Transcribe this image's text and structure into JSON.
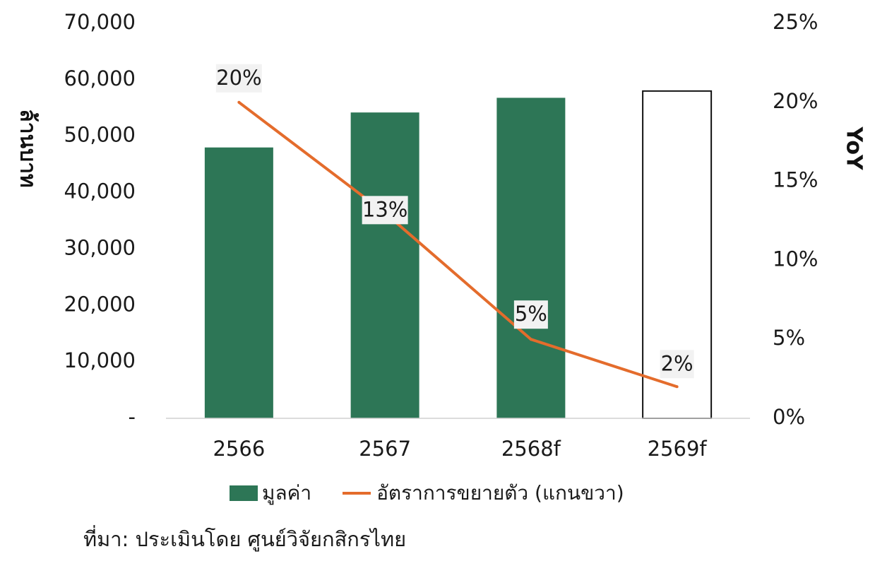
{
  "chart_data": {
    "type": "bar",
    "categories": [
      "2566",
      "2567",
      "2568f",
      "2569f"
    ],
    "series": [
      {
        "name": "มูลค่า",
        "type": "bar",
        "axis": "left",
        "values": [
          48000,
          54200,
          56800,
          58000
        ],
        "color": "#2d7656",
        "styles": [
          "filled",
          "filled",
          "filled",
          "outline"
        ]
      },
      {
        "name": "อัตราการขยายตัว (แกนขวา)",
        "type": "line",
        "axis": "right",
        "values": [
          20,
          13,
          5,
          2
        ],
        "data_labels": [
          "20%",
          "13%",
          "5%",
          "2%"
        ],
        "color": "#e46c2c"
      }
    ],
    "y_left": {
      "label": "ล้านบาท",
      "ylim": [
        0,
        70000
      ],
      "ticks": [
        0,
        10000,
        20000,
        30000,
        40000,
        50000,
        60000,
        70000
      ],
      "tick_labels": [
        "-",
        "10,000",
        "20,000",
        "30,000",
        "40,000",
        "50,000",
        "60,000",
        "70,000"
      ]
    },
    "y_right": {
      "label": "YoY",
      "ylim": [
        0,
        25
      ],
      "ticks": [
        0,
        5,
        10,
        15,
        20,
        25
      ],
      "tick_labels": [
        "0%",
        "5%",
        "10%",
        "15%",
        "20%",
        "25%"
      ]
    },
    "grid": false,
    "legend_position": "bottom",
    "label_background": "#f2f2f2"
  },
  "legend": [
    {
      "label": "มูลค่า",
      "kind": "bar",
      "color": "#2d7656"
    },
    {
      "label": "อัตราการขยายตัว (แกนขวา)",
      "kind": "line",
      "color": "#e46c2c"
    }
  ],
  "source": "ที่มา: ประเมินโดย ศูนย์วิจัยกสิกรไทย"
}
